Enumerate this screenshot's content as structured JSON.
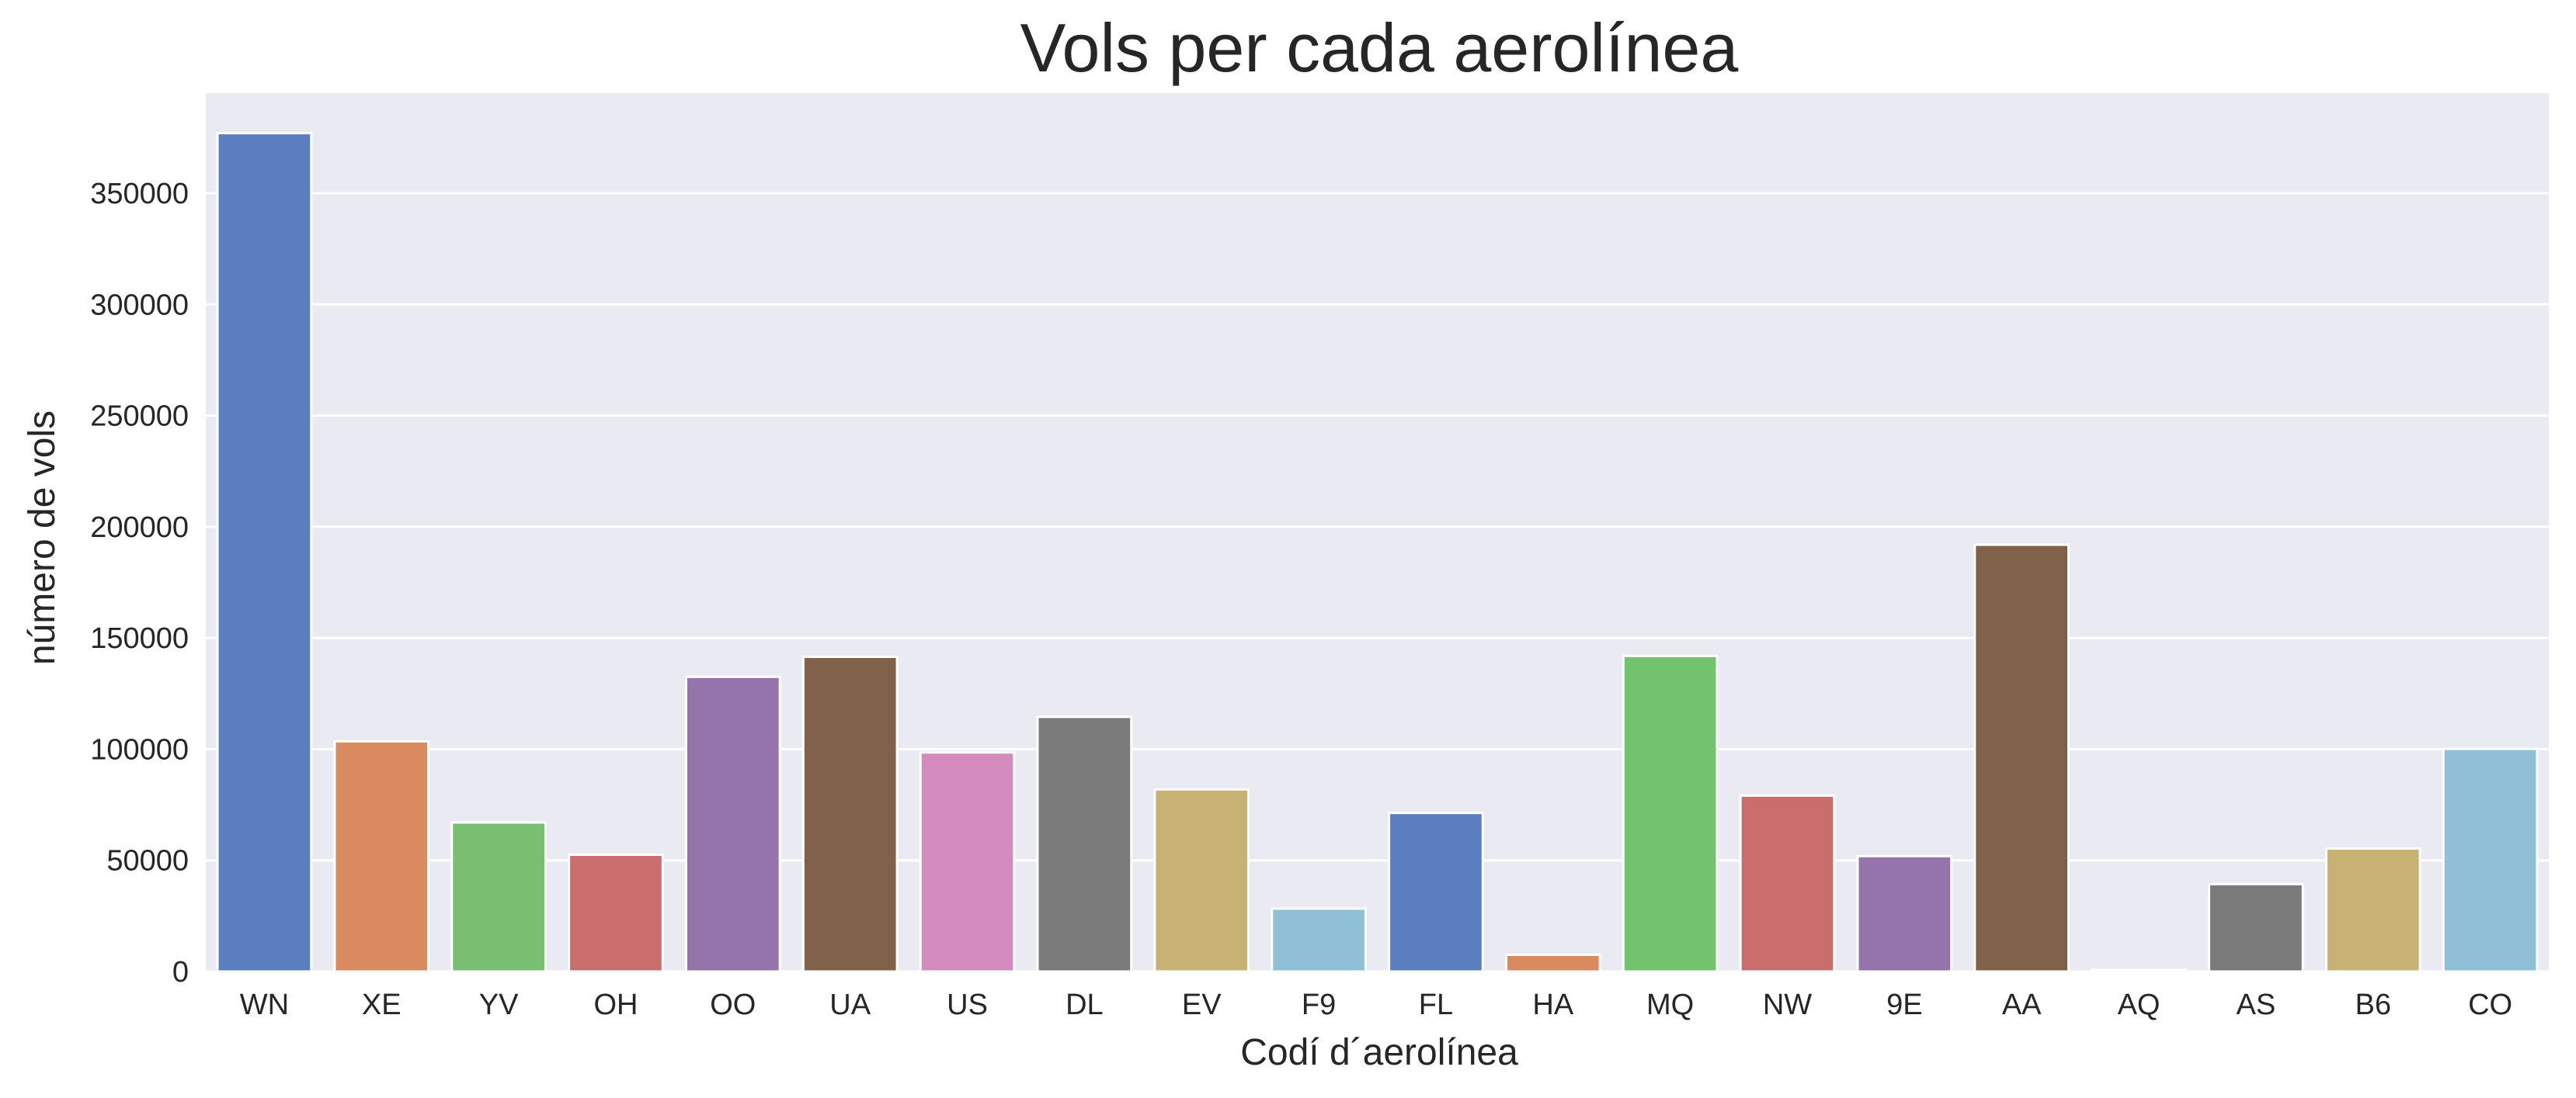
{
  "chart_data": {
    "type": "bar",
    "title": "Vols per cada aerolínea",
    "xlabel": "Codí d´aerolínea",
    "ylabel": "número de vols",
    "categories": [
      "WN",
      "XE",
      "YV",
      "OH",
      "OO",
      "UA",
      "US",
      "DL",
      "EV",
      "F9",
      "FL",
      "HA",
      "MQ",
      "NW",
      "9E",
      "AA",
      "AQ",
      "AS",
      "B6",
      "CO"
    ],
    "values": [
      377000,
      103500,
      67000,
      52500,
      132500,
      141500,
      98500,
      114500,
      81900,
      28300,
      71300,
      7500,
      141900,
      79100,
      51900,
      191900,
      750,
      39300,
      55300,
      100100
    ],
    "colors": [
      "#5b7ec1",
      "#d98a5e",
      "#78bf72",
      "#c96d6d",
      "#9574ab",
      "#81614a",
      "#d38abc",
      "#7a7a7a",
      "#c7b173",
      "#8fc0d5",
      "#5b7ec1",
      "#d98a5e",
      "#73c26d",
      "#c96d6d",
      "#9574ab",
      "#81614a",
      "#d38abc",
      "#7a7a7a",
      "#c7b173",
      "#8fc0d5"
    ],
    "yticks": [
      0,
      50000,
      100000,
      150000,
      200000,
      250000,
      300000,
      350000
    ],
    "ylim": [
      0,
      395000
    ],
    "grid": true,
    "background": "#eaeaf2",
    "grid_color": "#ffffff"
  }
}
